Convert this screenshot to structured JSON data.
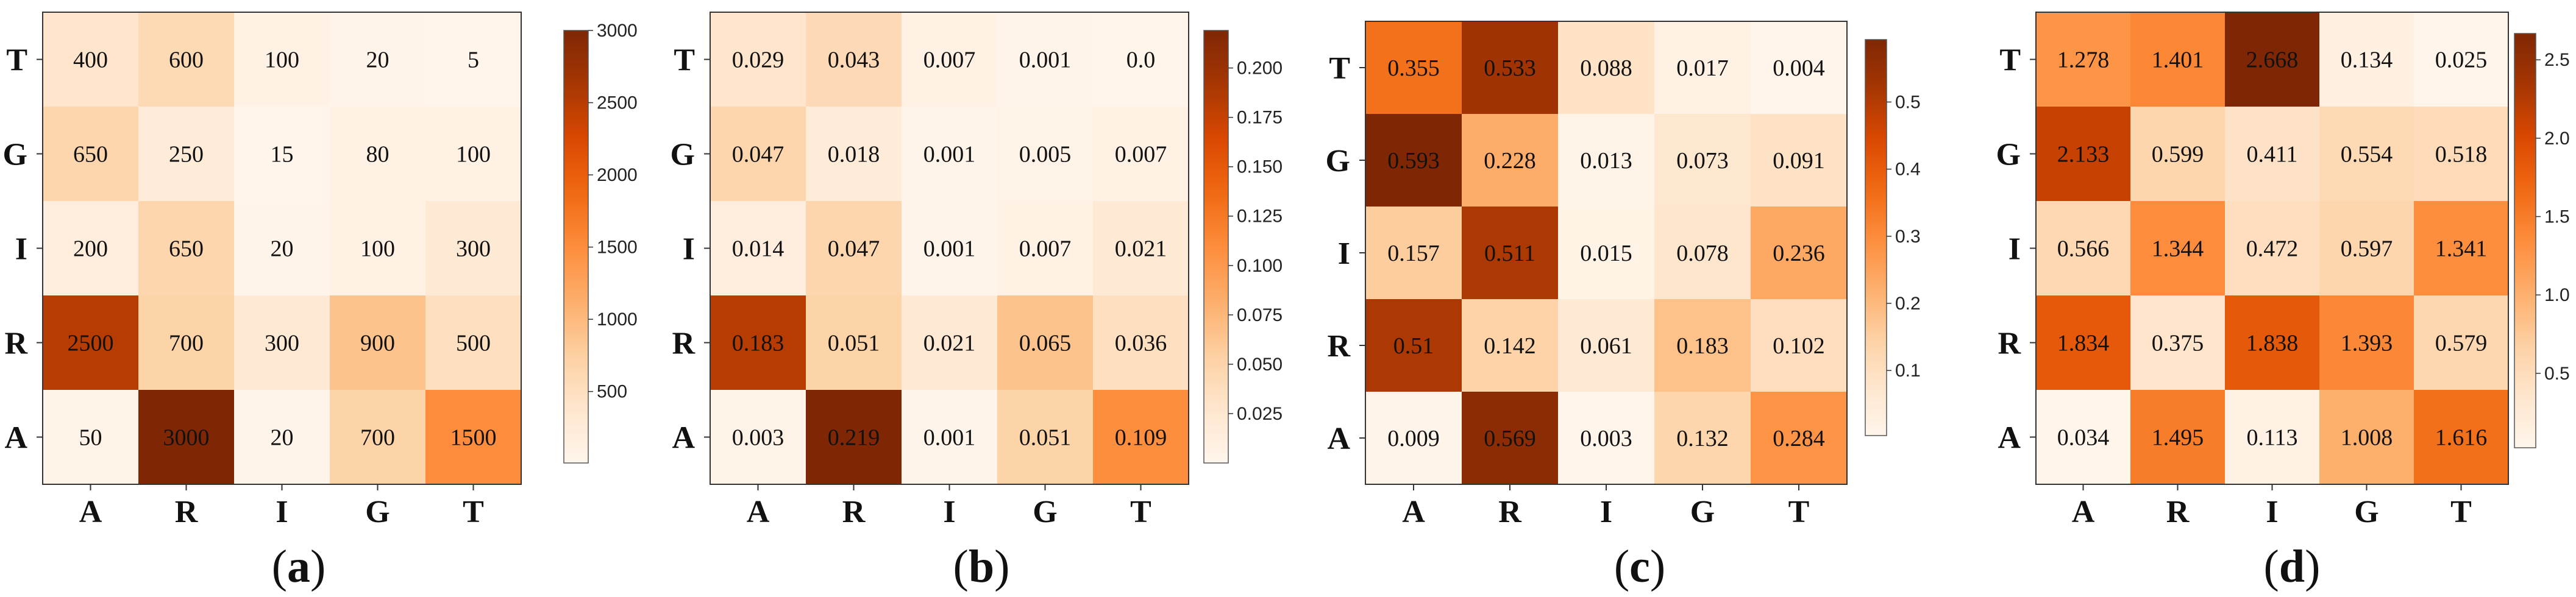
{
  "chart_data": [
    {
      "type": "heatmap",
      "panel_label": "(a)",
      "x_labels": [
        "A",
        "R",
        "I",
        "G",
        "T"
      ],
      "y_labels": [
        "T",
        "G",
        "I",
        "R",
        "A"
      ],
      "values": [
        [
          400,
          600,
          100,
          20,
          5
        ],
        [
          650,
          250,
          15,
          80,
          100
        ],
        [
          200,
          650,
          20,
          100,
          300
        ],
        [
          2500,
          700,
          300,
          900,
          500
        ],
        [
          50,
          3000,
          20,
          700,
          1500
        ]
      ],
      "value_labels": [
        [
          "400",
          "600",
          "100",
          "20",
          "5"
        ],
        [
          "650",
          "250",
          "15",
          "80",
          "100"
        ],
        [
          "200",
          "650",
          "20",
          "100",
          "300"
        ],
        [
          "2500",
          "700",
          "300",
          "900",
          "500"
        ],
        [
          "50",
          "3000",
          "20",
          "700",
          "1500"
        ]
      ],
      "vmin": 5,
      "vmax": 3000,
      "colorbar_ticks": [
        500,
        1000,
        1500,
        2000,
        2500,
        3000
      ],
      "colorbar_labels": [
        "500",
        "1000",
        "1500",
        "2000",
        "2500",
        "3000"
      ],
      "colormap": "Oranges"
    },
    {
      "type": "heatmap",
      "panel_label": "(b)",
      "x_labels": [
        "A",
        "R",
        "I",
        "G",
        "T"
      ],
      "y_labels": [
        "T",
        "G",
        "I",
        "R",
        "A"
      ],
      "values": [
        [
          0.029,
          0.043,
          0.007,
          0.001,
          0.0
        ],
        [
          0.047,
          0.018,
          0.001,
          0.005,
          0.007
        ],
        [
          0.014,
          0.047,
          0.001,
          0.007,
          0.021
        ],
        [
          0.183,
          0.051,
          0.021,
          0.065,
          0.036
        ],
        [
          0.003,
          0.219,
          0.001,
          0.051,
          0.109
        ]
      ],
      "value_labels": [
        [
          "0.029",
          "0.043",
          "0.007",
          "0.001",
          "0.0"
        ],
        [
          "0.047",
          "0.018",
          "0.001",
          "0.005",
          "0.007"
        ],
        [
          "0.014",
          "0.047",
          "0.001",
          "0.007",
          "0.021"
        ],
        [
          "0.183",
          "0.051",
          "0.021",
          "0.065",
          "0.036"
        ],
        [
          "0.003",
          "0.219",
          "0.001",
          "0.051",
          "0.109"
        ]
      ],
      "vmin": 0.0,
      "vmax": 0.219,
      "colorbar_ticks": [
        0.025,
        0.05,
        0.075,
        0.1,
        0.125,
        0.15,
        0.175,
        0.2
      ],
      "colorbar_labels": [
        "0.025",
        "0.050",
        "0.075",
        "0.100",
        "0.125",
        "0.150",
        "0.175",
        "0.200"
      ],
      "colormap": "Oranges"
    },
    {
      "type": "heatmap",
      "panel_label": "(c)",
      "x_labels": [
        "A",
        "R",
        "I",
        "G",
        "T"
      ],
      "y_labels": [
        "T",
        "G",
        "I",
        "R",
        "A"
      ],
      "values": [
        [
          0.355,
          0.533,
          0.088,
          0.017,
          0.004
        ],
        [
          0.593,
          0.228,
          0.013,
          0.073,
          0.091
        ],
        [
          0.157,
          0.511,
          0.015,
          0.078,
          0.236
        ],
        [
          0.51,
          0.142,
          0.061,
          0.183,
          0.102
        ],
        [
          0.009,
          0.569,
          0.003,
          0.132,
          0.284
        ]
      ],
      "value_labels": [
        [
          "0.355",
          "0.533",
          "0.088",
          "0.017",
          "0.004"
        ],
        [
          "0.593",
          "0.228",
          "0.013",
          "0.073",
          "0.091"
        ],
        [
          "0.157",
          "0.511",
          "0.015",
          "0.078",
          "0.236"
        ],
        [
          "0.51",
          "0.142",
          "0.061",
          "0.183",
          "0.102"
        ],
        [
          "0.009",
          "0.569",
          "0.003",
          "0.132",
          "0.284"
        ]
      ],
      "vmin": 0.003,
      "vmax": 0.593,
      "colorbar_ticks": [
        0.1,
        0.2,
        0.3,
        0.4,
        0.5
      ],
      "colorbar_labels": [
        "0.1",
        "0.2",
        "0.3",
        "0.4",
        "0.5"
      ],
      "colormap": "Oranges"
    },
    {
      "type": "heatmap",
      "panel_label": "(d)",
      "x_labels": [
        "A",
        "R",
        "I",
        "G",
        "T"
      ],
      "y_labels": [
        "T",
        "G",
        "I",
        "R",
        "A"
      ],
      "values": [
        [
          1.278,
          1.401,
          2.668,
          0.134,
          0.025
        ],
        [
          2.133,
          0.599,
          0.411,
          0.554,
          0.518
        ],
        [
          0.566,
          1.344,
          0.472,
          0.597,
          1.341
        ],
        [
          1.834,
          0.375,
          1.838,
          1.393,
          0.579
        ],
        [
          0.034,
          1.495,
          0.113,
          1.008,
          1.616
        ]
      ],
      "value_labels": [
        [
          "1.278",
          "1.401",
          "2.668",
          "0.134",
          "0.025"
        ],
        [
          "2.133",
          "0.599",
          "0.411",
          "0.554",
          "0.518"
        ],
        [
          "0.566",
          "1.344",
          "0.472",
          "0.597",
          "1.341"
        ],
        [
          "1.834",
          "0.375",
          "1.838",
          "1.393",
          "0.579"
        ],
        [
          "0.034",
          "1.495",
          "0.113",
          "1.008",
          "1.616"
        ]
      ],
      "vmin": 0.025,
      "vmax": 2.668,
      "colorbar_ticks": [
        0.5,
        1.0,
        1.5,
        2.0,
        2.5
      ],
      "colorbar_labels": [
        "0.5",
        "1.0",
        "1.5",
        "2.0",
        "2.5"
      ],
      "colormap": "Oranges"
    }
  ]
}
